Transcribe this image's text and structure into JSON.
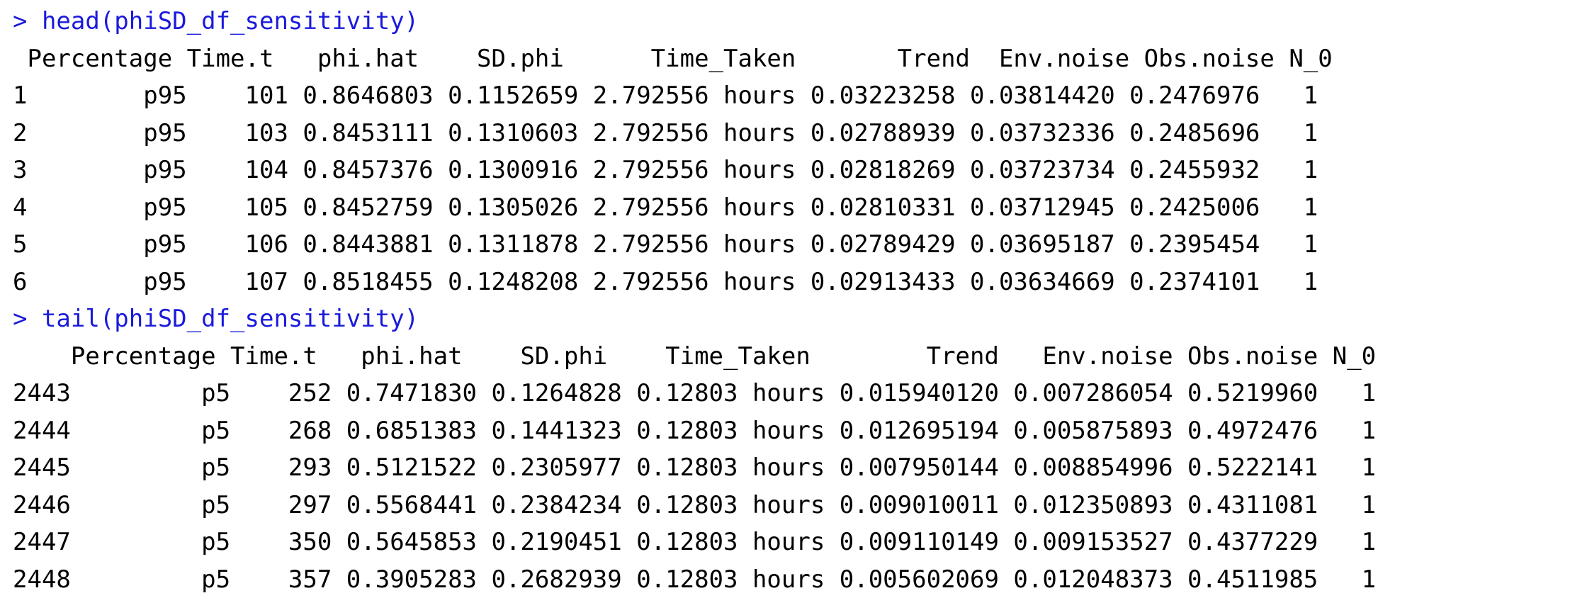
{
  "colors": {
    "command": "#1a1adb",
    "output": "#000000",
    "background": "#ffffff"
  },
  "console": {
    "head_command": "> head(phiSD_df_sensitivity)",
    "head_header": " Percentage Time.t   phi.hat    SD.phi      Time_Taken       Trend  Env.noise Obs.noise N_0",
    "head_rows": [
      "1        p95    101 0.8646803 0.1152659 2.792556 hours 0.03223258 0.03814420 0.2476976   1",
      "2        p95    103 0.8453111 0.1310603 2.792556 hours 0.02788939 0.03732336 0.2485696   1",
      "3        p95    104 0.8457376 0.1300916 2.792556 hours 0.02818269 0.03723734 0.2455932   1",
      "4        p95    105 0.8452759 0.1305026 2.792556 hours 0.02810331 0.03712945 0.2425006   1",
      "5        p95    106 0.8443881 0.1311878 2.792556 hours 0.02789429 0.03695187 0.2395454   1",
      "6        p95    107 0.8518455 0.1248208 2.792556 hours 0.02913433 0.03634669 0.2374101   1"
    ],
    "tail_command": "> tail(phiSD_df_sensitivity)",
    "tail_header": "    Percentage Time.t   phi.hat    SD.phi    Time_Taken        Trend   Env.noise Obs.noise N_0",
    "tail_rows": [
      "2443         p5    252 0.7471830 0.1264828 0.12803 hours 0.015940120 0.007286054 0.5219960   1",
      "2444         p5    268 0.6851383 0.1441323 0.12803 hours 0.012695194 0.005875893 0.4972476   1",
      "2445         p5    293 0.5121522 0.2305977 0.12803 hours 0.007950144 0.008854996 0.5222141   1",
      "2446         p5    297 0.5568441 0.2384234 0.12803 hours 0.009010011 0.012350893 0.4311081   1",
      "2447         p5    350 0.5645853 0.2190451 0.12803 hours 0.009110149 0.009153527 0.4377229   1",
      "2448         p5    357 0.3905283 0.2682939 0.12803 hours 0.005602069 0.012048373 0.4511985   1"
    ]
  }
}
